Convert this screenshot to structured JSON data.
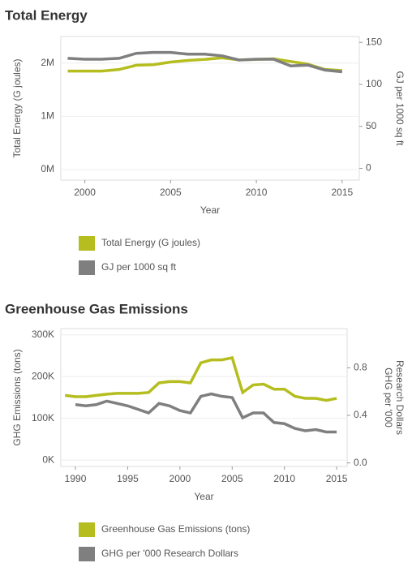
{
  "chart_data": [
    {
      "type": "line",
      "title": "Total Energy",
      "xlabel": "Year",
      "ylabel": "Total Energy (G joules)",
      "y2label": [
        "GJ per 1000 sq ft"
      ],
      "x": [
        1999,
        2000,
        2001,
        2002,
        2003,
        2004,
        2005,
        2006,
        2007,
        2008,
        2009,
        2010,
        2011,
        2012,
        2013,
        2014,
        2015
      ],
      "xlim": [
        1998.6,
        2016
      ],
      "xticks": [
        2000,
        2005,
        2010,
        2015
      ],
      "ylim": [
        -200000,
        2500000
      ],
      "yticks": [
        {
          "value": 0,
          "label": "0M"
        },
        {
          "value": 1000000,
          "label": "1M"
        },
        {
          "value": 2000000,
          "label": "2M"
        }
      ],
      "y2lim": [
        -14,
        157
      ],
      "y2ticks": [
        0,
        50,
        100,
        150
      ],
      "grid": true,
      "series": [
        {
          "name": "Total Energy (G joules)",
          "color": "#b5bd1f",
          "values": [
            1850000,
            1850000,
            1850000,
            1880000,
            1960000,
            1970000,
            2020000,
            2050000,
            2070000,
            2100000,
            2060000,
            2070000,
            2080000,
            2030000,
            1980000,
            1880000,
            1860000
          ]
        },
        {
          "name": "GJ per 1000 sq ft",
          "color": "#7f7f7f",
          "axis": "y2",
          "values": [
            131,
            130,
            130,
            131,
            137,
            138,
            138,
            136,
            136,
            134,
            129,
            130,
            130,
            122,
            123,
            117,
            115
          ]
        }
      ]
    },
    {
      "type": "line",
      "title": "Greenhouse Gas Emissions",
      "xlabel": "Year",
      "ylabel": "GHG Emissions (tons)",
      "y2label": [
        "GHG per '000",
        "Research Dollars"
      ],
      "x": [
        1989,
        1990,
        1991,
        1992,
        1993,
        1994,
        1995,
        1996,
        1997,
        1998,
        1999,
        2000,
        2001,
        2002,
        2003,
        2004,
        2005,
        2006,
        2007,
        2008,
        2009,
        2010,
        2011,
        2012,
        2013,
        2014,
        2015
      ],
      "xlim": [
        1988.6,
        2016
      ],
      "xticks": [
        1990,
        1995,
        2000,
        2005,
        2010,
        2015
      ],
      "ylim": [
        -15000,
        315000
      ],
      "yticks": [
        {
          "value": 0,
          "label": "0K"
        },
        {
          "value": 100000,
          "label": "100K"
        },
        {
          "value": 200000,
          "label": "200K"
        },
        {
          "value": 300000,
          "label": "300K"
        }
      ],
      "y2lim": [
        -0.03,
        1.13
      ],
      "y2ticks": [
        {
          "value": 0,
          "label": "0.0"
        },
        0.4,
        0.8
      ],
      "grid": true,
      "series": [
        {
          "name": "Greenhouse Gas Emissions (tons)",
          "color": "#b5bd1f",
          "values": [
            155000,
            152000,
            152000,
            155000,
            158000,
            160000,
            160000,
            160000,
            162000,
            185000,
            188000,
            188000,
            185000,
            233000,
            240000,
            240000,
            245000,
            162000,
            180000,
            182000,
            170000,
            170000,
            153000,
            148000,
            148000,
            143000,
            148000
          ]
        },
        {
          "name": "GHG per '000 Research Dollars",
          "color": "#7f7f7f",
          "axis": "y2",
          "values": [
            null,
            0.49,
            0.48,
            0.49,
            0.52,
            0.5,
            0.48,
            0.45,
            0.42,
            0.5,
            0.48,
            0.44,
            0.42,
            0.56,
            0.58,
            0.56,
            0.55,
            0.38,
            0.42,
            0.42,
            0.34,
            0.33,
            0.29,
            0.27,
            0.28,
            0.26,
            0.26
          ]
        }
      ]
    }
  ]
}
